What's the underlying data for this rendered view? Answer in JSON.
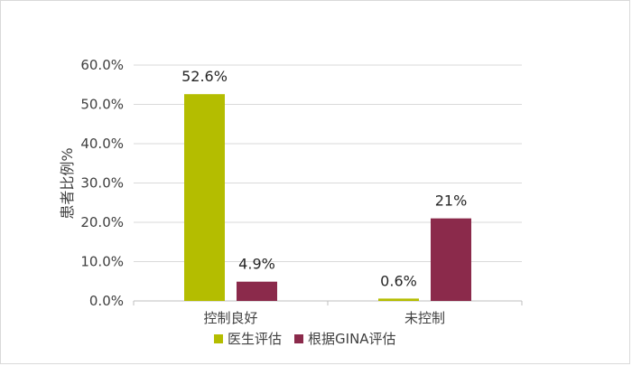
{
  "chart_data": {
    "type": "bar",
    "title": "",
    "ylabel": "患者比例%",
    "xlabel": "",
    "categories": [
      "控制良好",
      "未控制"
    ],
    "series": [
      {
        "name": "医生评估",
        "values": [
          52.6,
          0.6
        ],
        "labels": [
          "52.6%",
          "0.6%"
        ],
        "color": "#b4bd00"
      },
      {
        "name": "根据GINA评估",
        "values": [
          4.9,
          21
        ],
        "labels": [
          "4.9%",
          "21%"
        ],
        "color": "#8b2a4b"
      }
    ],
    "ylim": [
      0,
      60
    ],
    "yticks": [
      0,
      10,
      20,
      30,
      40,
      50,
      60
    ],
    "ytick_labels": [
      "0.0%",
      "10.0%",
      "20.0%",
      "30.0%",
      "40.0%",
      "50.0%",
      "60.0%"
    ],
    "grid": true,
    "legend_position": "bottom"
  }
}
